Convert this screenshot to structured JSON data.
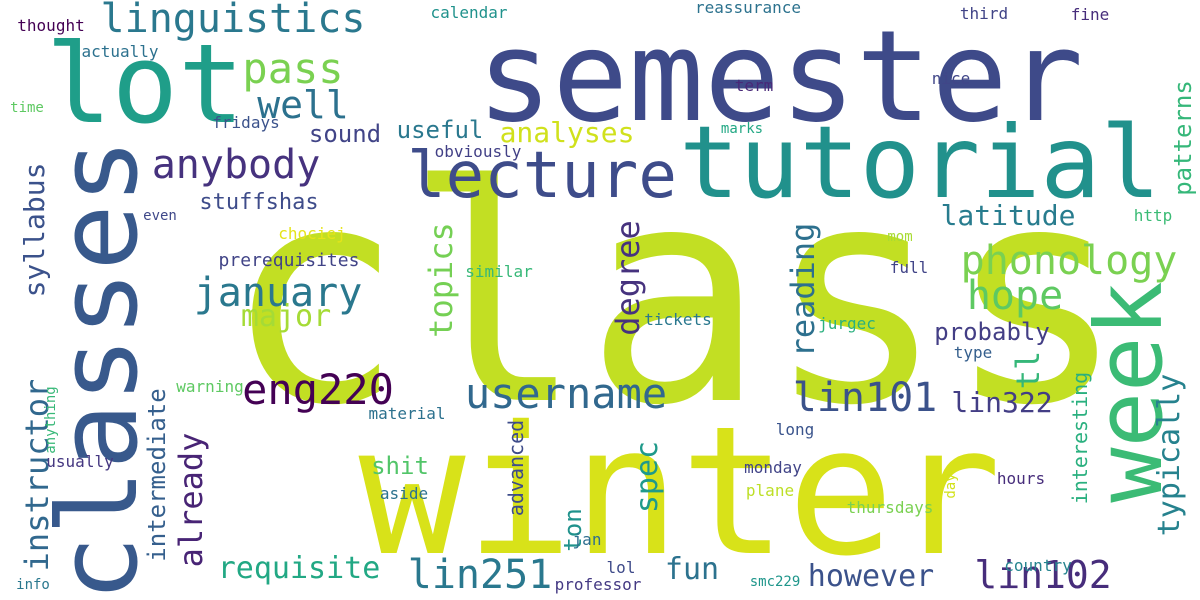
{
  "words": [
    {
      "id": "class",
      "text": "class",
      "color": "#c2df23"
    },
    {
      "id": "winter",
      "text": "winter",
      "color": "#d8e219"
    },
    {
      "id": "semester",
      "text": "semester",
      "color": "#3e4a89"
    },
    {
      "id": "classes",
      "text": "classes",
      "color": "#38598c"
    },
    {
      "id": "tutorial",
      "text": "tutorial",
      "color": "#21918c"
    },
    {
      "id": "lot",
      "text": "lot",
      "color": "#1f9e89"
    },
    {
      "id": "week",
      "text": "week",
      "color": "#3bbb75"
    },
    {
      "id": "lecture",
      "text": "lecture",
      "color": "#3e4c8a"
    },
    {
      "id": "linguistics",
      "text": "linguistics",
      "color": "#2a788e"
    },
    {
      "id": "pass",
      "text": "pass",
      "color": "#7ad151"
    },
    {
      "id": "well",
      "text": "well",
      "color": "#2c718e"
    },
    {
      "id": "anybody",
      "text": "anybody",
      "color": "#46327e"
    },
    {
      "id": "january",
      "text": "january",
      "color": "#2a788e"
    },
    {
      "id": "phonology",
      "text": "phonology",
      "color": "#7ad151"
    },
    {
      "id": "hope",
      "text": "hope",
      "color": "#5ec962"
    },
    {
      "id": "major",
      "text": "major",
      "color": "#a5db36"
    },
    {
      "id": "eng220",
      "text": "eng220",
      "color": "#440154"
    },
    {
      "id": "username",
      "text": "username",
      "color": "#31688e"
    },
    {
      "id": "lin101",
      "text": "lin101",
      "color": "#3b528b"
    },
    {
      "id": "lin322",
      "text": "lin322",
      "color": "#433e85"
    },
    {
      "id": "lin251",
      "text": "lin251",
      "color": "#2a788e"
    },
    {
      "id": "lin102",
      "text": "lin102",
      "color": "#472d7b"
    },
    {
      "id": "requisite",
      "text": "requisite",
      "color": "#22a884"
    },
    {
      "id": "however",
      "text": "however",
      "color": "#3b528b"
    },
    {
      "id": "fun",
      "text": "fun",
      "color": "#2c728e"
    },
    {
      "id": "analyses",
      "text": "analyses",
      "color": "#d0e11c"
    },
    {
      "id": "useful",
      "text": "useful",
      "color": "#2a788e"
    },
    {
      "id": "sound",
      "text": "sound",
      "color": "#414487"
    },
    {
      "id": "latitude",
      "text": "latitude",
      "color": "#287c8e"
    },
    {
      "id": "probably",
      "text": "probably",
      "color": "#433e85"
    },
    {
      "id": "stuffshas",
      "text": "stuffshas",
      "color": "#3e4c8a"
    },
    {
      "id": "prerequisites",
      "text": "prerequisites",
      "color": "#414487"
    },
    {
      "id": "syllabus",
      "text": "syllabus",
      "color": "#3b528b"
    },
    {
      "id": "instructor",
      "text": "instructor",
      "color": "#31688e"
    },
    {
      "id": "intermediate",
      "text": "intermediate",
      "color": "#355f8d"
    },
    {
      "id": "already",
      "text": "already",
      "color": "#482475"
    },
    {
      "id": "topics",
      "text": "topics",
      "color": "#75d054"
    },
    {
      "id": "degree",
      "text": "degree",
      "color": "#46327e"
    },
    {
      "id": "reading",
      "text": "reading",
      "color": "#2d708e"
    },
    {
      "id": "patterns",
      "text": "patterns",
      "color": "#35b779"
    },
    {
      "id": "typically",
      "text": "typically",
      "color": "#26828e"
    },
    {
      "id": "tl",
      "text": "tl",
      "color": "#35b779"
    },
    {
      "id": "interesting",
      "text": "interesting",
      "color": "#2ab07f"
    },
    {
      "id": "spec",
      "text": "spec",
      "color": "#1f9a8a"
    },
    {
      "id": "advanced",
      "text": "advanced",
      "color": "#3e4c8a"
    },
    {
      "id": "ton",
      "text": "ton",
      "color": "#20928c"
    },
    {
      "id": "shit",
      "text": "shit",
      "color": "#52c569"
    },
    {
      "id": "aside",
      "text": "aside",
      "color": "#2c728e"
    },
    {
      "id": "monday",
      "text": "monday",
      "color": "#414487"
    },
    {
      "id": "plane",
      "text": "plane",
      "color": "#bddf26"
    },
    {
      "id": "thursdays",
      "text": "thursdays",
      "color": "#7ad151"
    },
    {
      "id": "hours",
      "text": "hours",
      "color": "#472d7b"
    },
    {
      "id": "country",
      "text": "country",
      "color": "#25848e"
    },
    {
      "id": "professor",
      "text": "professor",
      "color": "#443983"
    },
    {
      "id": "smc229",
      "text": "smc229",
      "color": "#1f968b"
    },
    {
      "id": "lol",
      "text": "lol",
      "color": "#3e4a89"
    },
    {
      "id": "jan",
      "text": "jan",
      "color": "#2e6e8e"
    },
    {
      "id": "info",
      "text": "info",
      "color": "#2a788e"
    },
    {
      "id": "usually",
      "text": "usually",
      "color": "#453781"
    },
    {
      "id": "anything",
      "text": "anything",
      "color": "#37b878"
    },
    {
      "id": "material",
      "text": "material",
      "color": "#2c718e"
    },
    {
      "id": "warning",
      "text": "warning",
      "color": "#5ec962"
    },
    {
      "id": "long",
      "text": "long",
      "color": "#3a548c"
    },
    {
      "id": "type",
      "text": "type",
      "color": "#355f8d"
    },
    {
      "id": "tickets",
      "text": "tickets",
      "color": "#2a788e"
    },
    {
      "id": "jurgec",
      "text": "jurgec",
      "color": "#2ab07f"
    },
    {
      "id": "similar",
      "text": "similar",
      "color": "#37b878"
    },
    {
      "id": "full",
      "text": "full",
      "color": "#414487"
    },
    {
      "id": "mom",
      "text": "mom",
      "color": "#a8db34"
    },
    {
      "id": "http",
      "text": "http",
      "color": "#3bbb75"
    },
    {
      "id": "chociej",
      "text": "chociej",
      "color": "#e5e419"
    },
    {
      "id": "even",
      "text": "even",
      "color": "#3f4889"
    },
    {
      "id": "obviously",
      "text": "obviously",
      "color": "#424086"
    },
    {
      "id": "marks",
      "text": "marks",
      "color": "#22a884"
    },
    {
      "id": "term",
      "text": "term",
      "color": "#482878"
    },
    {
      "id": "nice",
      "text": "nice",
      "color": "#404688"
    },
    {
      "id": "fridays",
      "text": "fridays",
      "color": "#3b528b"
    },
    {
      "id": "calendar",
      "text": "calendar",
      "color": "#20928c"
    },
    {
      "id": "reassurance",
      "text": "reassurance",
      "color": "#2c728e"
    },
    {
      "id": "third",
      "text": "third",
      "color": "#414487"
    },
    {
      "id": "fine",
      "text": "fine",
      "color": "#472d7b"
    },
    {
      "id": "thought",
      "text": "thought",
      "color": "#440154"
    },
    {
      "id": "actually",
      "text": "actually",
      "color": "#2c718e"
    },
    {
      "id": "time",
      "text": "time",
      "color": "#5ec962"
    },
    {
      "id": "day",
      "text": "day",
      "color": "#d2e21b"
    }
  ]
}
